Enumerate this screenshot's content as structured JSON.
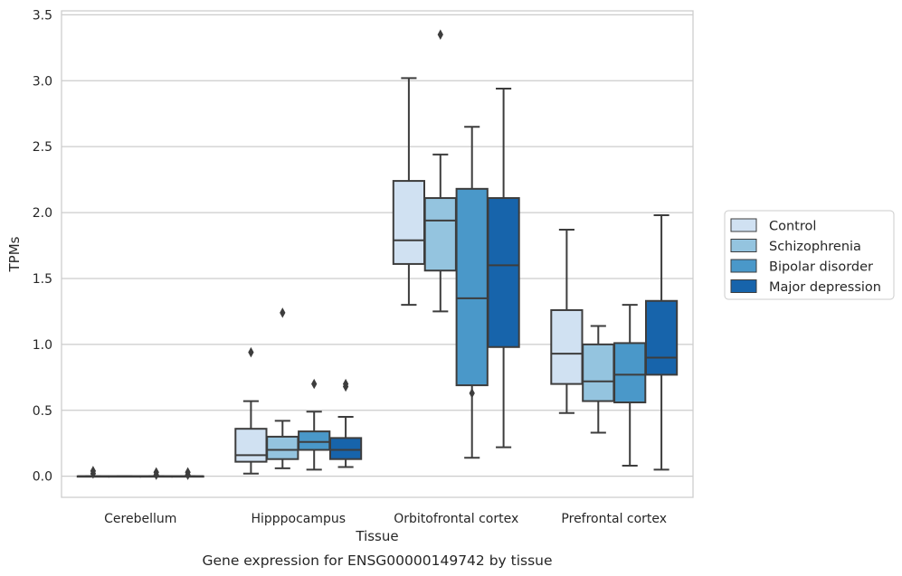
{
  "chart_data": {
    "type": "boxplot",
    "caption": "Gene expression for ENSG00000149742 by tissue",
    "xlabel": "Tissue",
    "ylabel": "TPMs",
    "ylim": [
      -0.16,
      3.53
    ],
    "yticks": [
      0.0,
      0.5,
      1.0,
      1.5,
      2.0,
      2.5,
      3.0,
      3.5
    ],
    "ytick_labels": [
      "0.0",
      "0.5",
      "1.0",
      "1.5",
      "2.0",
      "2.5",
      "3.0",
      "3.5"
    ],
    "grid": "horizontal",
    "legend_position": "right",
    "categories": [
      "Cerebellum",
      "Hipppocampus",
      "Orbitofrontal cortex",
      "Prefrontal cortex"
    ],
    "series": [
      {
        "name": "Control",
        "color": "#d0e1f2",
        "boxes": [
          {
            "whislo": 0.0,
            "q1": 0.0,
            "med": 0.0,
            "q3": 0.0,
            "whishi": 0.0,
            "fliers": [
              0.02,
              0.04
            ]
          },
          {
            "whislo": 0.02,
            "q1": 0.11,
            "med": 0.16,
            "q3": 0.36,
            "whishi": 0.57,
            "fliers": [
              0.94
            ]
          },
          {
            "whislo": 1.3,
            "q1": 1.61,
            "med": 1.79,
            "q3": 2.24,
            "whishi": 3.02,
            "fliers": []
          },
          {
            "whislo": 0.48,
            "q1": 0.7,
            "med": 0.93,
            "q3": 1.26,
            "whishi": 1.87,
            "fliers": []
          }
        ]
      },
      {
        "name": "Schizophrenia",
        "color": "#94c4df",
        "boxes": [
          {
            "whislo": 0.0,
            "q1": 0.0,
            "med": 0.0,
            "q3": 0.0,
            "whishi": 0.0,
            "fliers": []
          },
          {
            "whislo": 0.06,
            "q1": 0.13,
            "med": 0.2,
            "q3": 0.3,
            "whishi": 0.42,
            "fliers": [
              1.24
            ]
          },
          {
            "whislo": 1.25,
            "q1": 1.56,
            "med": 1.94,
            "q3": 2.11,
            "whishi": 2.44,
            "fliers": [
              3.35
            ]
          },
          {
            "whislo": 0.33,
            "q1": 0.57,
            "med": 0.72,
            "q3": 1.0,
            "whishi": 1.14,
            "fliers": []
          }
        ]
      },
      {
        "name": "Bipolar disorder",
        "color": "#4a98c9",
        "boxes": [
          {
            "whislo": 0.0,
            "q1": 0.0,
            "med": 0.0,
            "q3": 0.0,
            "whishi": 0.0,
            "fliers": [
              0.01,
              0.03
            ]
          },
          {
            "whislo": 0.05,
            "q1": 0.2,
            "med": 0.26,
            "q3": 0.34,
            "whishi": 0.49,
            "fliers": [
              0.7
            ]
          },
          {
            "whislo": 0.14,
            "q1": 0.69,
            "med": 1.35,
            "q3": 2.18,
            "whishi": 2.65,
            "fliers": [
              0.63
            ]
          },
          {
            "whislo": 0.08,
            "q1": 0.56,
            "med": 0.77,
            "q3": 1.01,
            "whishi": 1.3,
            "fliers": []
          }
        ]
      },
      {
        "name": "Major depression",
        "color": "#1764ab",
        "boxes": [
          {
            "whislo": 0.0,
            "q1": 0.0,
            "med": 0.0,
            "q3": 0.0,
            "whishi": 0.0,
            "fliers": [
              0.01,
              0.03
            ]
          },
          {
            "whislo": 0.07,
            "q1": 0.13,
            "med": 0.2,
            "q3": 0.29,
            "whishi": 0.45,
            "fliers": [
              0.68,
              0.7
            ]
          },
          {
            "whislo": 0.22,
            "q1": 0.98,
            "med": 1.6,
            "q3": 2.11,
            "whishi": 2.94,
            "fliers": []
          },
          {
            "whislo": 0.05,
            "q1": 0.77,
            "med": 0.9,
            "q3": 1.33,
            "whishi": 1.98,
            "fliers": []
          }
        ]
      }
    ]
  }
}
